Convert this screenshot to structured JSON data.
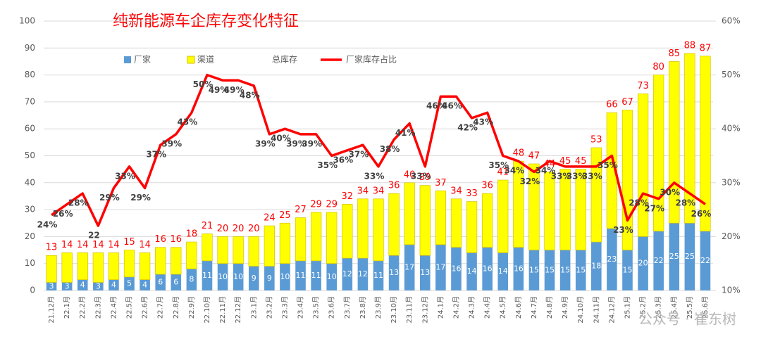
{
  "chart_data": {
    "type": "bar",
    "title": "纯新能源车企库存变化特征",
    "watermark": "公众号 · 崔东树",
    "categories": [
      "21.12月",
      "22.1月",
      "22.2月",
      "22.3月",
      "22.4月",
      "22.5月",
      "22.6月",
      "22.7月",
      "22.8月",
      "22.9月",
      "22.10月",
      "22.11月",
      "22.12月",
      "23.1月",
      "23.2月",
      "23.3月",
      "23.4月",
      "23.5月",
      "23.6月",
      "23.7月",
      "23.8月",
      "23.9月",
      "23.10月",
      "23.11月",
      "23.12月",
      "24.1月",
      "24.2月",
      "24.3月",
      "24.4月",
      "24.5月",
      "24.6月",
      "24.7月",
      "24.8月",
      "24.9月",
      "24.10月",
      "24.11月",
      "24.12月",
      "25.1月",
      "25.2月",
      "25.3月",
      "25.4月",
      "25.5月",
      "25.6月"
    ],
    "series": [
      {
        "name": "厂家",
        "type": "bar",
        "color": "#5b9bd5",
        "values": [
          3,
          3,
          4,
          3,
          4,
          5,
          4,
          6,
          6,
          8,
          11,
          10,
          10,
          9,
          9,
          10,
          11,
          11,
          10,
          12,
          12,
          11,
          13,
          17,
          13,
          17,
          16,
          14,
          16,
          14,
          16,
          15,
          15,
          15,
          15,
          18,
          23,
          15,
          20,
          22,
          25,
          25,
          22
        ]
      },
      {
        "name": "渠道",
        "type": "bar",
        "color": "#ffff00",
        "values": [
          10,
          11,
          10,
          11,
          10,
          10,
          10,
          10,
          10,
          10,
          10,
          10,
          10,
          11,
          15,
          15,
          16,
          18,
          19,
          20,
          22,
          23,
          23,
          23,
          26,
          20,
          18,
          19,
          20,
          27,
          32,
          32,
          29,
          30,
          30,
          35,
          43,
          52,
          53,
          58,
          60,
          63,
          65
        ]
      },
      {
        "name": "总库存",
        "type": "label",
        "color": "#ff0000",
        "values": [
          13,
          14,
          14,
          14,
          14,
          15,
          14,
          16,
          16,
          18,
          21,
          20,
          20,
          20,
          24,
          25,
          27,
          29,
          29,
          32,
          34,
          34,
          36,
          40,
          39,
          37,
          34,
          33,
          36,
          41,
          48,
          47,
          44,
          45,
          45,
          53,
          66,
          67,
          73,
          80,
          85,
          88,
          87
        ]
      },
      {
        "name": "厂家库存占比",
        "type": "line",
        "color": "#ff0000",
        "axis": "y2",
        "values": [
          24,
          26,
          28,
          22,
          29,
          33,
          29,
          37,
          39,
          43,
          50,
          49,
          49,
          48,
          39,
          40,
          39,
          39,
          35,
          36,
          37,
          33,
          38,
          41,
          33,
          46,
          46,
          42,
          43,
          35,
          34,
          32,
          34,
          33,
          33,
          33,
          35,
          23,
          28,
          27,
          30,
          28,
          26
        ],
        "value_labels": [
          "24%",
          "26%",
          "28%",
          "22",
          "29%",
          "33%",
          "29%",
          "37%",
          "39%",
          "43%",
          "50%",
          "49%",
          "49%",
          "48%",
          "39%",
          "40%",
          "39%",
          "39%",
          "35%",
          "36%",
          "37%",
          "33%",
          "38%",
          "41%",
          "33%",
          "46%",
          "46%",
          "42%",
          "43%",
          "35%",
          "34%",
          "32%",
          "34%",
          "33%",
          "33%",
          "33%",
          "35%",
          "23%",
          "28%",
          "27%",
          "30%",
          "28%",
          "26%"
        ]
      }
    ],
    "ylim": [
      0,
      100
    ],
    "yticks": [
      0,
      10,
      20,
      30,
      40,
      50,
      60,
      70,
      80,
      90,
      100
    ],
    "y2lim": [
      10,
      60
    ],
    "y2ticks": [
      {
        "value": 10,
        "label": "10%"
      },
      {
        "value": 20,
        "label": "20%"
      },
      {
        "value": 30,
        "label": "30%"
      },
      {
        "value": 40,
        "label": "40%"
      },
      {
        "value": 50,
        "label": "50%"
      },
      {
        "value": 60,
        "label": "60%"
      }
    ],
    "grid": true
  }
}
